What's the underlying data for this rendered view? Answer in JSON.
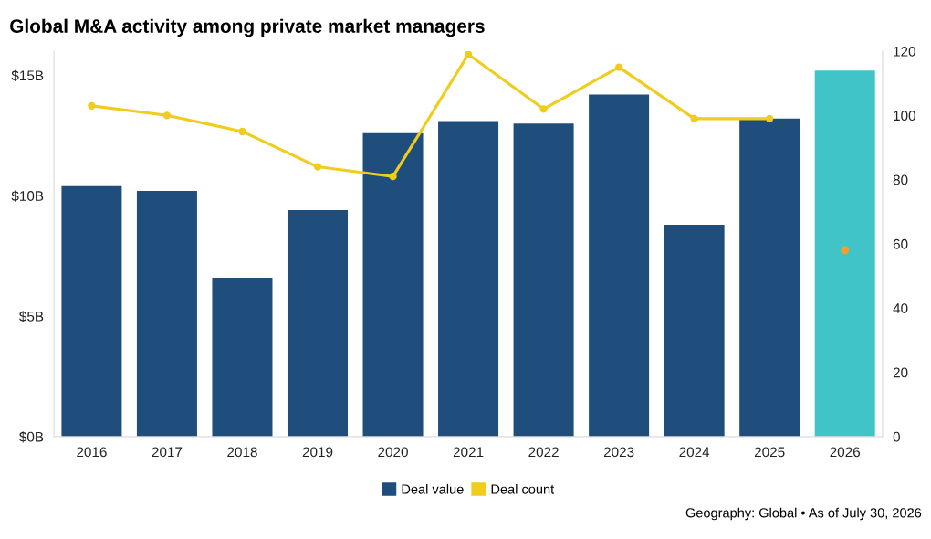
{
  "chart_data": {
    "type": "bar",
    "title": "Global M&A activity among private market managers",
    "categories": [
      "2016",
      "2017",
      "2018",
      "2019",
      "2020",
      "2021",
      "2022",
      "2023",
      "2024",
      "2025",
      "2026"
    ],
    "series": [
      {
        "name": "Deal value",
        "color": "#1f4e7d",
        "colors": [
          "#1f4e7d",
          "#1f4e7d",
          "#1f4e7d",
          "#1f4e7d",
          "#1f4e7d",
          "#1f4e7d",
          "#1f4e7d",
          "#1f4e7d",
          "#1f4e7d",
          "#1f4e7d",
          "#40c4c8"
        ],
        "values": [
          10.4,
          10.2,
          6.6,
          9.4,
          12.6,
          13.1,
          13.0,
          14.2,
          8.8,
          13.2,
          15.2
        ]
      },
      {
        "name": "Deal count",
        "type": "line",
        "axis": "y2",
        "color": "#f0cc1c",
        "marker": "circle",
        "values": [
          103,
          100,
          95,
          84,
          81,
          119,
          102,
          115,
          99,
          99,
          null
        ]
      },
      {
        "type": "scatter",
        "axis": "y2",
        "color": "#f0a030",
        "marker": "circle",
        "values": [
          null,
          null,
          null,
          null,
          null,
          null,
          null,
          null,
          null,
          null,
          58
        ]
      }
    ],
    "ylim": [
      0,
      16
    ],
    "yticks": [
      {
        "value": 0,
        "label": "$0B"
      },
      {
        "value": 5,
        "label": "$5B"
      },
      {
        "value": 10,
        "label": "$10B"
      },
      {
        "value": 15,
        "label": "$15B"
      }
    ],
    "y2lim": [
      0,
      120
    ],
    "y2ticks": [
      0,
      20,
      40,
      60,
      80,
      100,
      120
    ],
    "grid": false,
    "legend": "bottom",
    "annotations": [
      "Geography: Global • As of July 30, 2026"
    ]
  }
}
